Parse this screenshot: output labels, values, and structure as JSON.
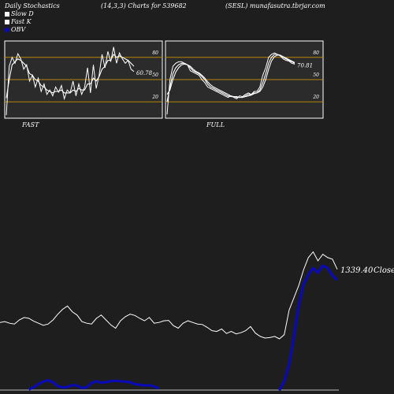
{
  "header": {
    "left": "Daily Stochastics",
    "params": "(14,3,3) Charts for 539682",
    "site": "(SESL) munafasutra.tbrjar.com"
  },
  "legend": {
    "items": [
      {
        "label": "Slow  D",
        "color": "#ffffff"
      },
      {
        "label": "Fast K",
        "color": "#ffffff"
      },
      {
        "label": "OBV",
        "color": "#0a0ab4"
      }
    ]
  },
  "colors": {
    "background": "#1e1e1e",
    "panel": "#2b2b2b",
    "level_line": "#b8860b",
    "price_line": "#ffffff",
    "obv_line": "#0a0ab4"
  },
  "chart_data": [
    {
      "type": "line",
      "name_label": "FAST",
      "ylim": [
        0,
        100
      ],
      "y_ticks": [
        20,
        50,
        80
      ],
      "level_lines": [
        20,
        50,
        80
      ],
      "last_value_label": "60.78",
      "series": [
        {
          "values": [
            2,
            68,
            80,
            72,
            85,
            78,
            64,
            70,
            48,
            56,
            40,
            52,
            34,
            44,
            30,
            36,
            28,
            40,
            33,
            42,
            24,
            36,
            32,
            48,
            28,
            44,
            30,
            40,
            66,
            32,
            70,
            38,
            56,
            84,
            66,
            88,
            74,
            94,
            72,
            86,
            78,
            72,
            76,
            64,
            60.78
          ]
        },
        {
          "values": [
            25,
            50,
            70,
            74,
            78,
            76,
            72,
            68,
            58,
            56,
            50,
            48,
            42,
            40,
            36,
            34,
            32,
            34,
            34,
            36,
            32,
            32,
            32,
            36,
            34,
            38,
            36,
            36,
            44,
            44,
            52,
            48,
            54,
            64,
            68,
            76,
            76,
            84,
            80,
            82,
            80,
            78,
            76,
            72,
            68
          ]
        }
      ]
    },
    {
      "type": "line",
      "name_label": "FULL",
      "ylim": [
        0,
        100
      ],
      "y_ticks": [
        20,
        50,
        80
      ],
      "level_lines": [
        20,
        50,
        80
      ],
      "last_value_label": "70.81",
      "series": [
        {
          "values": [
            3,
            50,
            68,
            72,
            74,
            74,
            72,
            70,
            62,
            60,
            58,
            56,
            50,
            46,
            40,
            38,
            36,
            34,
            32,
            30,
            28,
            26,
            28,
            26,
            24,
            28,
            27,
            30,
            32,
            30,
            34,
            34,
            40,
            56,
            66,
            80,
            84,
            86,
            84,
            82,
            78,
            76,
            75,
            72,
            70.81
          ]
        },
        {
          "values": [
            20,
            40,
            58,
            66,
            70,
            72,
            72,
            70,
            66,
            62,
            60,
            58,
            54,
            50,
            44,
            40,
            38,
            36,
            34,
            32,
            30,
            28,
            27,
            27,
            26,
            26,
            26,
            28,
            30,
            30,
            32,
            32,
            36,
            46,
            58,
            72,
            80,
            84,
            84,
            83,
            80,
            78,
            76,
            74,
            72
          ]
        },
        {
          "values": [
            30,
            36,
            50,
            60,
            66,
            70,
            71,
            70,
            68,
            64,
            61,
            59,
            56,
            52,
            47,
            43,
            40,
            38,
            36,
            34,
            32,
            30,
            28,
            27,
            27,
            26,
            26,
            27,
            28,
            29,
            31,
            32,
            34,
            40,
            50,
            64,
            75,
            81,
            83,
            83,
            81,
            79,
            77,
            75,
            73
          ]
        }
      ]
    },
    {
      "type": "line",
      "last_value_label": "1339.40",
      "series_label": "Close",
      "series": [
        {
          "name": "Close",
          "values": [
            1210,
            1212,
            1208,
            1206,
            1216,
            1222,
            1220,
            1213,
            1208,
            1203,
            1206,
            1216,
            1230,
            1242,
            1250,
            1236,
            1228,
            1212,
            1208,
            1206,
            1220,
            1228,
            1216,
            1204,
            1196,
            1214,
            1224,
            1230,
            1227,
            1220,
            1214,
            1222,
            1208,
            1210,
            1214,
            1215,
            1202,
            1196,
            1208,
            1214,
            1210,
            1206,
            1205,
            1198,
            1190,
            1188,
            1194,
            1183,
            1188,
            1182,
            1185,
            1190,
            1200,
            1184,
            1176,
            1172,
            1173,
            1176,
            1170,
            1180,
            1240,
            1270,
            1300,
            1338,
            1368,
            1382,
            1360,
            1376,
            1368,
            1364,
            1339.4
          ]
        },
        {
          "name": "OBV",
          "values": [
            null,
            null,
            null,
            null,
            null,
            null,
            -120,
            -80,
            -10,
            40,
            70,
            30,
            -50,
            -80,
            -70,
            -30,
            -40,
            -90,
            -80,
            10,
            50,
            20,
            30,
            50,
            60,
            50,
            40,
            30,
            -10,
            -20,
            -40,
            -30,
            -60,
            -100,
            null,
            null,
            null,
            null,
            null,
            null,
            null,
            null,
            null,
            null,
            null,
            null,
            null,
            null,
            null,
            null,
            null,
            null,
            null,
            null,
            null,
            null,
            null,
            null,
            -140,
            40,
            380,
            950,
            1600,
            2050,
            2250,
            2400,
            2300,
            2450,
            2400,
            2250,
            2150
          ]
        }
      ]
    }
  ]
}
